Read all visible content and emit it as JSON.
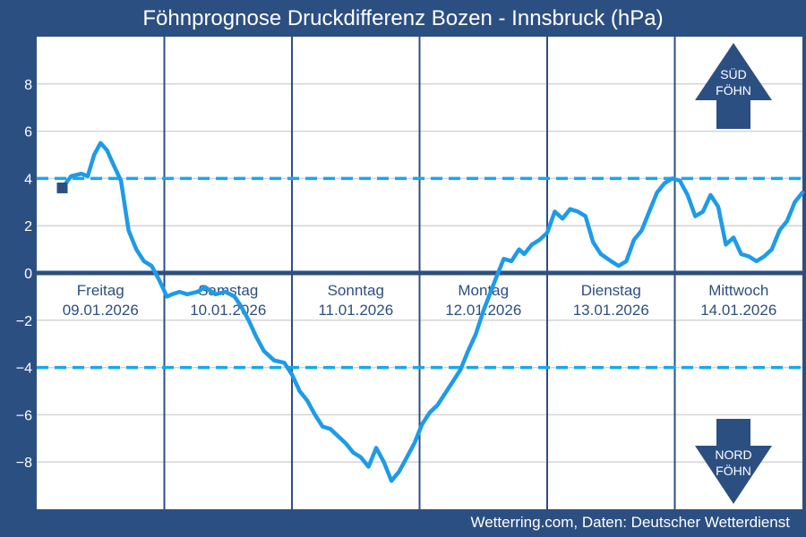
{
  "title": "Föhnprognose Druckdifferenz Bozen - Innsbruck (hPa)",
  "footer": "Wetterring.com, Daten: Deutscher Wetterdienst",
  "colors": {
    "background": "#2c4f82",
    "plot_area": "#ffffff",
    "series_line": "#1e9be8",
    "threshold": "#1aa7ec",
    "zero_line": "#2c4f82",
    "marker": "#2c4f82"
  },
  "arrows": {
    "south": {
      "line1": "SÜD",
      "line2": "FÖHN",
      "icon": "arrow-up-icon"
    },
    "north": {
      "line1": "NORD",
      "line2": "FÖHN",
      "icon": "arrow-down-icon"
    }
  },
  "chart_data": {
    "type": "line",
    "title": "Föhnprognose Druckdifferenz Bozen - Innsbruck (hPa)",
    "ylabel": "",
    "xlabel": "",
    "ylim": [
      -10,
      10
    ],
    "xlim": [
      0,
      6
    ],
    "yticks": [
      -8,
      -6,
      -4,
      -2,
      0,
      2,
      4,
      6,
      8
    ],
    "ytick_labels": [
      "−8",
      "−6",
      "−4",
      "−2",
      "0",
      "2",
      "4",
      "6",
      "8"
    ],
    "grid": true,
    "threshold_lines": [
      4,
      -4
    ],
    "days": [
      {
        "name": "Freitag",
        "date": "09.01.2026"
      },
      {
        "name": "Samstag",
        "date": "10.01.2026"
      },
      {
        "name": "Sonntag",
        "date": "11.01.2026"
      },
      {
        "name": "Montag",
        "date": "12.01.2026"
      },
      {
        "name": "Dienstag",
        "date": "13.01.2026"
      },
      {
        "name": "Mittwoch",
        "date": "14.01.2026"
      }
    ],
    "current_marker": {
      "x": 0.2,
      "y": 3.6
    },
    "series": [
      {
        "x": [
          0.2,
          0.27,
          0.35,
          0.4,
          0.45,
          0.5,
          0.55,
          0.6,
          0.66,
          0.72,
          0.78,
          0.84,
          0.9,
          0.96,
          1.02,
          1.06,
          1.12,
          1.18,
          1.26,
          1.32,
          1.4,
          1.48,
          1.55,
          1.6,
          1.66,
          1.72,
          1.78,
          1.86,
          1.94,
          2.0,
          2.06,
          2.12,
          2.18,
          2.24,
          2.3,
          2.36,
          2.42,
          2.48,
          2.54,
          2.6,
          2.66,
          2.72,
          2.78,
          2.84,
          2.9,
          2.96,
          3.02,
          3.08,
          3.14,
          3.2,
          3.26,
          3.32,
          3.38,
          3.44,
          3.5,
          3.55,
          3.6,
          3.66,
          3.72,
          3.78,
          3.82,
          3.88,
          3.94,
          4.0,
          4.06,
          4.12,
          4.18,
          4.24,
          4.3,
          4.36,
          4.42,
          4.5,
          4.56,
          4.62,
          4.68,
          4.74,
          4.8,
          4.86,
          4.92,
          4.98,
          5.04,
          5.1,
          5.16,
          5.22,
          5.28,
          5.34,
          5.4,
          5.46,
          5.52,
          5.58,
          5.64,
          5.7,
          5.76,
          5.82,
          5.88,
          5.94,
          6.0
        ],
        "y": [
          3.6,
          4.1,
          4.2,
          4.1,
          5.0,
          5.5,
          5.2,
          4.6,
          3.9,
          1.8,
          1.0,
          0.5,
          0.3,
          -0.3,
          -1.0,
          -0.9,
          -0.8,
          -0.9,
          -0.8,
          -0.6,
          -0.9,
          -0.8,
          -1.0,
          -1.4,
          -2.0,
          -2.7,
          -3.3,
          -3.7,
          -3.8,
          -4.3,
          -5.0,
          -5.4,
          -6.0,
          -6.5,
          -6.6,
          -6.9,
          -7.2,
          -7.6,
          -7.8,
          -8.2,
          -7.4,
          -8.0,
          -8.8,
          -8.4,
          -7.8,
          -7.2,
          -6.4,
          -5.9,
          -5.6,
          -5.1,
          -4.6,
          -4.1,
          -3.3,
          -2.6,
          -1.6,
          -0.9,
          -0.2,
          0.6,
          0.5,
          1.0,
          0.8,
          1.2,
          1.4,
          1.7,
          2.6,
          2.3,
          2.7,
          2.6,
          2.4,
          1.3,
          0.8,
          0.5,
          0.3,
          0.5,
          1.4,
          1.8,
          2.6,
          3.4,
          3.8,
          4.0,
          3.9,
          3.3,
          2.4,
          2.6,
          3.3,
          2.8,
          1.2,
          1.5,
          0.8,
          0.7,
          0.5,
          0.7,
          1.0,
          1.8,
          2.2,
          3.0,
          3.4
        ]
      }
    ]
  }
}
